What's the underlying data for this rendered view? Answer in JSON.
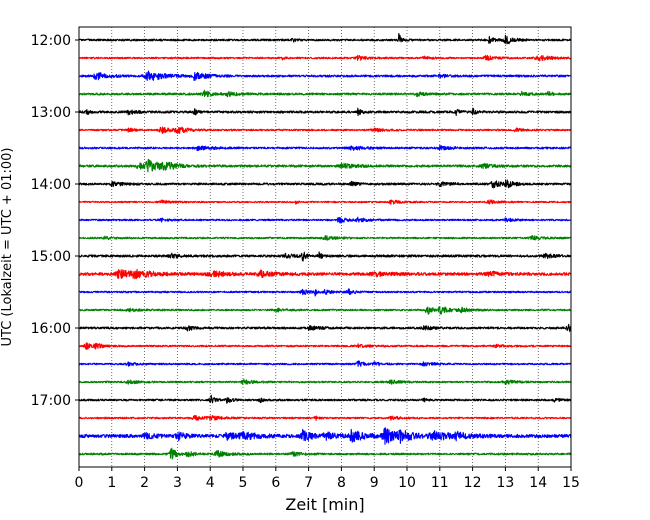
{
  "chart_data": {
    "type": "line",
    "title": "",
    "xlabel": "Zeit  [min]",
    "ylabel": "UTC (Lokalzeit = UTC + 01:00)",
    "xlim": [
      0,
      15
    ],
    "x_ticks": [
      "0",
      "1",
      "2",
      "3",
      "4",
      "5",
      "6",
      "7",
      "8",
      "9",
      "10",
      "11",
      "12",
      "13",
      "14",
      "15"
    ],
    "y_ticks": [
      "12:00",
      "13:00",
      "14:00",
      "15:00",
      "16:00",
      "17:00"
    ],
    "grid": "vertical dotted at each minute",
    "trace_interval_min": 15,
    "start_hour": "12:00",
    "colors": [
      "#000000",
      "#ff0000",
      "#0000ff",
      "#008000"
    ],
    "traces": [
      {
        "start": "12:00",
        "color": "#000000",
        "noise": 0.9,
        "events": [
          [
            9.75,
            0.08,
            6
          ],
          [
            12.5,
            0.15,
            3
          ],
          [
            13.0,
            0.25,
            4.5
          ],
          [
            6.5,
            0.1,
            2
          ]
        ]
      },
      {
        "start": "12:15",
        "color": "#ff0000",
        "noise": 0.8,
        "events": [
          [
            6.2,
            0.05,
            2
          ],
          [
            8.5,
            0.3,
            2
          ],
          [
            12.4,
            0.3,
            2.2
          ],
          [
            14.0,
            0.4,
            2.5
          ],
          [
            10.5,
            0.2,
            1.5
          ]
        ]
      },
      {
        "start": "12:30",
        "color": "#0000ff",
        "noise": 1.0,
        "events": [
          [
            0.5,
            0.3,
            4
          ],
          [
            2.1,
            0.4,
            5.5
          ],
          [
            3.5,
            0.35,
            3.5
          ],
          [
            11.0,
            0.2,
            1.5
          ]
        ]
      },
      {
        "start": "12:45",
        "color": "#008000",
        "noise": 1.0,
        "events": [
          [
            3.8,
            0.25,
            3
          ],
          [
            4.5,
            0.3,
            2
          ],
          [
            10.3,
            0.2,
            2
          ],
          [
            13.5,
            0.2,
            2
          ],
          [
            14.3,
            0.15,
            2
          ]
        ]
      },
      {
        "start": "13:00",
        "color": "#000000",
        "noise": 1.1,
        "events": [
          [
            0.2,
            0.1,
            3
          ],
          [
            3.5,
            0.1,
            3
          ],
          [
            8.5,
            0.1,
            3
          ],
          [
            11.5,
            0.1,
            2.5
          ],
          [
            12.0,
            0.1,
            3
          ],
          [
            1.5,
            0.2,
            2
          ]
        ]
      },
      {
        "start": "13:15",
        "color": "#ff0000",
        "noise": 0.8,
        "events": [
          [
            1.5,
            0.15,
            2
          ],
          [
            2.5,
            0.3,
            3
          ],
          [
            3.0,
            0.3,
            3
          ],
          [
            9.0,
            0.3,
            1.5
          ],
          [
            13.3,
            0.2,
            1.5
          ]
        ]
      },
      {
        "start": "13:30",
        "color": "#0000ff",
        "noise": 0.9,
        "events": [
          [
            3.6,
            0.4,
            1.8
          ],
          [
            8.3,
            0.4,
            2
          ],
          [
            11.0,
            0.3,
            1.8
          ]
        ]
      },
      {
        "start": "13:45",
        "color": "#008000",
        "noise": 1.1,
        "events": [
          [
            1.8,
            0.3,
            3
          ],
          [
            2.1,
            0.4,
            5
          ],
          [
            2.6,
            0.35,
            3
          ],
          [
            8.0,
            0.4,
            2.2
          ],
          [
            12.3,
            0.3,
            2
          ]
        ]
      },
      {
        "start": "14:00",
        "color": "#000000",
        "noise": 1.0,
        "events": [
          [
            1.0,
            0.3,
            2
          ],
          [
            11.0,
            0.3,
            2
          ],
          [
            12.6,
            0.3,
            3.5
          ],
          [
            13.0,
            0.2,
            3.5
          ],
          [
            8.3,
            0.15,
            2
          ]
        ]
      },
      {
        "start": "14:15",
        "color": "#ff0000",
        "noise": 0.7,
        "events": [
          [
            6.6,
            0.05,
            3
          ],
          [
            2.5,
            0.3,
            1.5
          ],
          [
            9.5,
            0.3,
            1.8
          ],
          [
            12.5,
            0.3,
            1.8
          ]
        ]
      },
      {
        "start": "14:30",
        "color": "#0000ff",
        "noise": 0.8,
        "events": [
          [
            7.9,
            0.2,
            3.5
          ],
          [
            8.5,
            0.3,
            2
          ],
          [
            13.0,
            0.2,
            1.8
          ],
          [
            2.5,
            0.2,
            1.5
          ]
        ]
      },
      {
        "start": "14:45",
        "color": "#008000",
        "noise": 0.8,
        "events": [
          [
            7.5,
            0.3,
            1.8
          ],
          [
            13.8,
            0.3,
            1.8
          ],
          [
            0.8,
            0.2,
            1.5
          ]
        ]
      },
      {
        "start": "15:00",
        "color": "#000000",
        "noise": 1.1,
        "events": [
          [
            6.8,
            0.08,
            7
          ],
          [
            7.3,
            0.08,
            4
          ],
          [
            6.3,
            0.2,
            2.5
          ],
          [
            2.8,
            0.2,
            2
          ],
          [
            14.2,
            0.3,
            2
          ]
        ]
      },
      {
        "start": "15:15",
        "color": "#ff0000",
        "noise": 1.4,
        "events": [
          [
            1.2,
            0.3,
            4.5
          ],
          [
            1.7,
            0.5,
            3.5
          ],
          [
            4.0,
            0.4,
            2.8
          ],
          [
            5.5,
            0.4,
            2.8
          ],
          [
            9.0,
            0.5,
            1.8
          ],
          [
            12.5,
            0.3,
            2.5
          ]
        ]
      },
      {
        "start": "15:30",
        "color": "#0000ff",
        "noise": 0.8,
        "events": [
          [
            6.8,
            0.2,
            2.8
          ],
          [
            7.5,
            0.2,
            2.2
          ],
          [
            8.2,
            0.2,
            2.5
          ],
          [
            7.2,
            0.05,
            3.5
          ]
        ]
      },
      {
        "start": "15:45",
        "color": "#008000",
        "noise": 0.8,
        "events": [
          [
            10.6,
            0.15,
            6
          ],
          [
            11.0,
            0.3,
            3.5
          ],
          [
            11.6,
            0.3,
            2.2
          ],
          [
            1.5,
            0.3,
            1.5
          ],
          [
            6.0,
            0.3,
            1.5
          ]
        ]
      },
      {
        "start": "16:00",
        "color": "#000000",
        "noise": 1.0,
        "events": [
          [
            3.3,
            0.2,
            2.2
          ],
          [
            14.9,
            0.15,
            4
          ],
          [
            7.0,
            0.3,
            1.8
          ],
          [
            10.5,
            0.3,
            1.8
          ]
        ]
      },
      {
        "start": "16:15",
        "color": "#ff0000",
        "noise": 0.8,
        "events": [
          [
            0.2,
            0.2,
            3.5
          ],
          [
            0.5,
            0.2,
            2.2
          ],
          [
            12.7,
            0.2,
            1.8
          ],
          [
            8.5,
            0.3,
            1.5
          ]
        ]
      },
      {
        "start": "16:30",
        "color": "#0000ff",
        "noise": 0.8,
        "events": [
          [
            8.5,
            0.15,
            3.5
          ],
          [
            9.0,
            0.2,
            2
          ],
          [
            10.5,
            0.3,
            1.8
          ],
          [
            1.5,
            0.3,
            1.5
          ]
        ]
      },
      {
        "start": "16:45",
        "color": "#008000",
        "noise": 0.8,
        "events": [
          [
            5.0,
            0.3,
            2.2
          ],
          [
            9.5,
            0.3,
            1.8
          ],
          [
            13.0,
            0.3,
            1.8
          ],
          [
            1.5,
            0.3,
            1.5
          ]
        ]
      },
      {
        "start": "17:00",
        "color": "#000000",
        "noise": 0.9,
        "events": [
          [
            4.0,
            0.12,
            5
          ],
          [
            4.5,
            0.15,
            3
          ],
          [
            5.5,
            0.1,
            2.5
          ],
          [
            10.5,
            0.1,
            1.5
          ],
          [
            14.5,
            0.2,
            1.5
          ]
        ]
      },
      {
        "start": "17:15",
        "color": "#ff0000",
        "noise": 0.8,
        "events": [
          [
            3.5,
            0.3,
            2
          ],
          [
            4.0,
            0.3,
            2
          ],
          [
            7.2,
            0.05,
            3.5
          ],
          [
            9.5,
            0.3,
            1.5
          ]
        ]
      },
      {
        "start": "17:30",
        "color": "#0000ff",
        "noise": 1.6,
        "events": [
          [
            3.0,
            0.2,
            4
          ],
          [
            4.5,
            0.3,
            3
          ],
          [
            5.0,
            0.4,
            3.5
          ],
          [
            6.8,
            0.25,
            6
          ],
          [
            7.5,
            0.3,
            3.5
          ],
          [
            8.3,
            0.35,
            5.5
          ],
          [
            9.3,
            0.25,
            9
          ],
          [
            9.8,
            0.4,
            6
          ],
          [
            10.8,
            0.5,
            4
          ],
          [
            11.5,
            0.3,
            2.5
          ],
          [
            2.0,
            0.3,
            2.2
          ]
        ]
      },
      {
        "start": "17:45",
        "color": "#008000",
        "noise": 0.9,
        "events": [
          [
            2.8,
            0.15,
            6
          ],
          [
            3.3,
            0.2,
            3
          ],
          [
            4.2,
            0.3,
            3
          ],
          [
            6.5,
            0.3,
            1.8
          ]
        ]
      }
    ]
  }
}
